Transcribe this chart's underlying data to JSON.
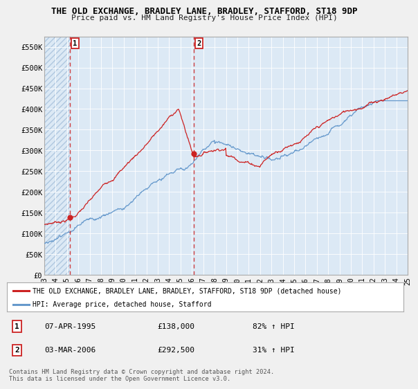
{
  "title": "THE OLD EXCHANGE, BRADLEY LANE, BRADLEY, STAFFORD, ST18 9DP",
  "subtitle": "Price paid vs. HM Land Registry's House Price Index (HPI)",
  "ylim": [
    0,
    575000
  ],
  "yticks": [
    0,
    50000,
    100000,
    150000,
    200000,
    250000,
    300000,
    350000,
    400000,
    450000,
    500000,
    550000
  ],
  "ytick_labels": [
    "£0",
    "£50K",
    "£100K",
    "£150K",
    "£200K",
    "£250K",
    "£300K",
    "£350K",
    "£400K",
    "£450K",
    "£500K",
    "£550K"
  ],
  "sale1_date_num": 1995.27,
  "sale1_price": 138000,
  "sale1_label": "1",
  "sale1_date_str": "07-APR-1995",
  "sale1_price_str": "£138,000",
  "sale1_hpi_str": "82% ↑ HPI",
  "sale2_date_num": 2006.17,
  "sale2_price": 292500,
  "sale2_label": "2",
  "sale2_date_str": "03-MAR-2006",
  "sale2_price_str": "£292,500",
  "sale2_hpi_str": "31% ↑ HPI",
  "line_color_red": "#cc2222",
  "line_color_blue": "#6699cc",
  "marker_color_red": "#cc2222",
  "bg_color": "#f0f0f0",
  "plot_bg_color": "#dce9f5",
  "hatch_bg_color": "#dce9f5",
  "hatch_color": "#b0c8e0",
  "grid_color": "#ffffff",
  "legend_line1": "THE OLD EXCHANGE, BRADLEY LANE, BRADLEY, STAFFORD, ST18 9DP (detached house)",
  "legend_line2": "HPI: Average price, detached house, Stafford",
  "footer": "Contains HM Land Registry data © Crown copyright and database right 2024.\nThis data is licensed under the Open Government Licence v3.0.",
  "xlabel_start": 1993,
  "xlabel_end": 2025
}
